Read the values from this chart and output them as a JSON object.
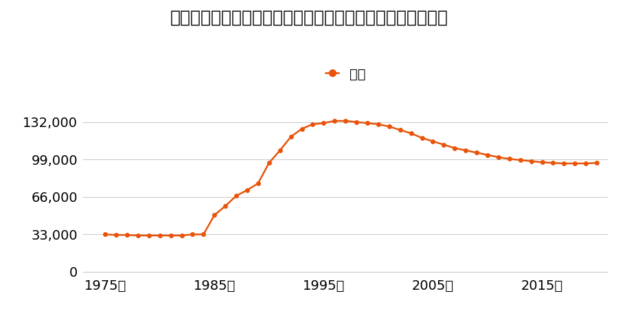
{
  "title": "福岡県北九州市門司区大里戸ノ上１丁目１１番５の地価推移",
  "legend_label": "価格",
  "line_color": "#E8540A",
  "marker_color": "#E8540A",
  "background_color": "#ffffff",
  "grid_color": "#cccccc",
  "ylim": [
    0,
    148500
  ],
  "yticks": [
    0,
    33000,
    66000,
    99000,
    132000
  ],
  "xticks": [
    1975,
    1985,
    1995,
    2005,
    2015
  ],
  "xlim": [
    1973,
    2021
  ],
  "years": [
    1975,
    1976,
    1977,
    1978,
    1979,
    1980,
    1981,
    1982,
    1983,
    1984,
    1985,
    1986,
    1987,
    1988,
    1989,
    1990,
    1991,
    1992,
    1993,
    1994,
    1995,
    1996,
    1997,
    1998,
    1999,
    2000,
    2001,
    2002,
    2003,
    2004,
    2005,
    2006,
    2007,
    2008,
    2009,
    2010,
    2011,
    2012,
    2013,
    2014,
    2015,
    2016,
    2017,
    2018,
    2019,
    2020
  ],
  "values": [
    33000,
    32500,
    32500,
    32000,
    32000,
    32000,
    32000,
    32000,
    33000,
    33000,
    50000,
    58000,
    67000,
    72000,
    78000,
    96000,
    107000,
    119000,
    126000,
    130000,
    131000,
    133000,
    133000,
    132000,
    131000,
    130000,
    128000,
    125000,
    122000,
    118000,
    115000,
    112000,
    109000,
    107000,
    105000,
    103000,
    101000,
    99500,
    98500,
    97500,
    96500,
    96000,
    95500,
    95500,
    95500,
    96000
  ],
  "title_fontsize": 18,
  "tick_fontsize": 14,
  "legend_fontsize": 14,
  "linewidth": 1.8,
  "markersize": 5
}
